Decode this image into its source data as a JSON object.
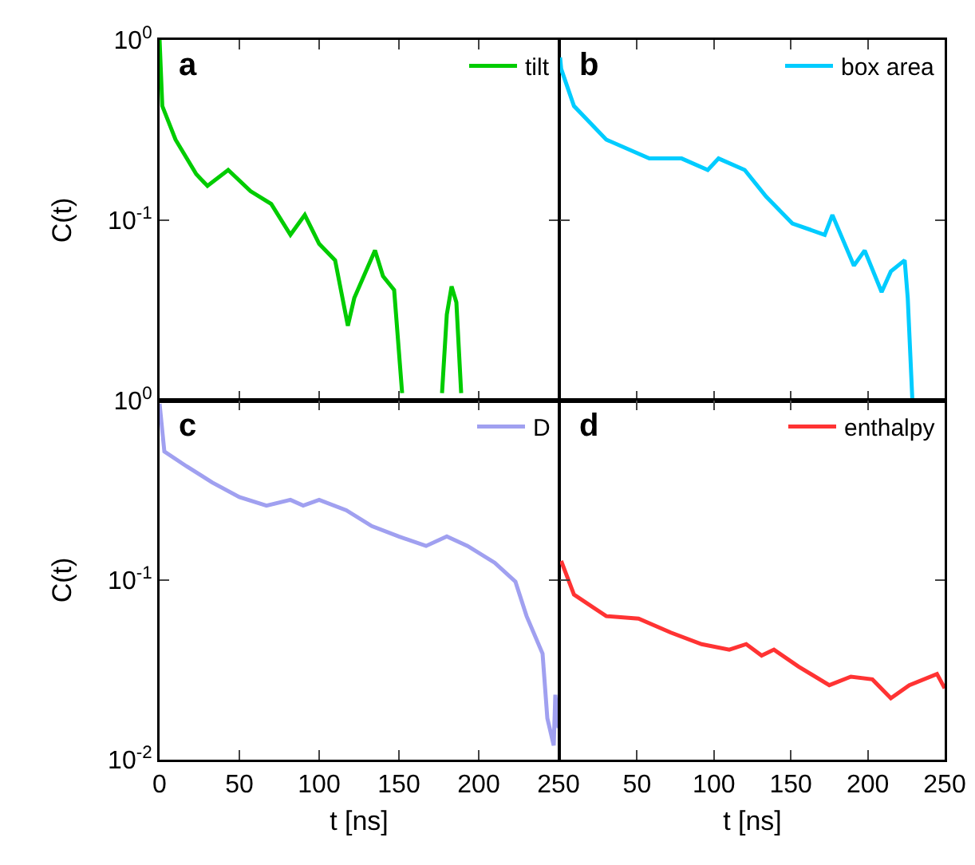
{
  "chart_data": [
    {
      "type": "line",
      "title": "a",
      "ylabel": "C(t)",
      "log": "y",
      "legend": "top right",
      "tick_labels": "y",
      "xlim": [
        0,
        250
      ],
      "xticks": [
        0,
        50,
        100,
        150,
        200,
        250
      ],
      "ylim": [
        0.01,
        1
      ],
      "yticks": [
        {
          "value": 1,
          "label": "10$^{0}$"
        },
        {
          "value": 0.1,
          "label": "10$^{-1}$"
        },
        {
          "value": 0.01,
          "label": null
        }
      ],
      "series": [
        {
          "name": "tilt",
          "color": "#00cc00",
          "x": [
            0,
            1.7,
            10,
            23,
            30,
            43,
            57,
            70,
            82,
            91,
            100,
            110,
            118,
            122,
            135,
            140,
            147,
            152,
            165,
            177,
            180,
            183,
            186,
            189
          ],
          "values": [
            1,
            0.43,
            0.28,
            0.18,
            0.155,
            0.19,
            0.145,
            0.123,
            0.083,
            0.107,
            0.074,
            0.06,
            0.026,
            0.037,
            0.068,
            0.049,
            0.041,
            0.011,
            null,
            0.011,
            0.03,
            0.043,
            0.035,
            0.011
          ]
        }
      ]
    },
    {
      "type": "line",
      "title": "b",
      "log": "y",
      "legend": "top right",
      "tick_labels": false,
      "xlim": [
        0,
        250
      ],
      "xticks": [
        0,
        50,
        100,
        150,
        200,
        250
      ],
      "ylim": [
        0.01,
        1
      ],
      "yticks": [
        {
          "value": 0.1,
          "label": null
        }
      ],
      "series": [
        {
          "name": "box area",
          "color": "#00ccff",
          "x": [
            0,
            0.7,
            9,
            30,
            58,
            79,
            96,
            103,
            120,
            134,
            151,
            172,
            177,
            191,
            198,
            209,
            215,
            224,
            226,
            229
          ],
          "values": [
            0.8,
            0.69,
            0.43,
            0.28,
            0.22,
            0.22,
            0.19,
            0.22,
            0.19,
            0.135,
            0.096,
            0.083,
            0.107,
            0.056,
            0.068,
            0.04,
            0.052,
            0.06,
            0.037,
            0.01
          ]
        }
      ]
    },
    {
      "type": "line",
      "title": "c",
      "xlabel": "t [ns]",
      "ylabel": "C(t)",
      "log": "y",
      "legend": "top right",
      "xlim": [
        0,
        250
      ],
      "xticks": [
        0,
        50,
        100,
        150,
        200,
        250
      ],
      "ylim": [
        0.01,
        1
      ],
      "yticks": [
        {
          "value": 1,
          "label": "10$^{0}$"
        },
        {
          "value": 0.1,
          "label": "10$^{-1}$"
        },
        {
          "value": 0.01,
          "label": "10$^{-2}$"
        }
      ],
      "series": [
        {
          "name": "D",
          "color": "#a0a0f0",
          "x": [
            0,
            3,
            17,
            33,
            50,
            67,
            82,
            90,
            100,
            117,
            133,
            150,
            167,
            180,
            193,
            210,
            223,
            230,
            240,
            243,
            247,
            248,
            250
          ],
          "values": [
            0.96,
            0.52,
            0.43,
            0.35,
            0.29,
            0.26,
            0.28,
            0.26,
            0.28,
            0.245,
            0.2,
            0.175,
            0.155,
            0.175,
            0.155,
            0.125,
            0.098,
            0.063,
            0.039,
            0.017,
            0.012,
            0.023,
            0.015
          ]
        }
      ]
    },
    {
      "type": "line",
      "title": "d",
      "xlabel": "t [ns]",
      "log": "y",
      "legend": "top right",
      "tick_labels": "x",
      "xlim": [
        0,
        250
      ],
      "xticks": [
        50,
        100,
        150,
        200,
        250
      ],
      "ylim": [
        0.01,
        1
      ],
      "yticks": [
        {
          "value": 0.1,
          "label": null
        }
      ],
      "series": [
        {
          "name": "enthalpy",
          "color": "#ff3333",
          "x": [
            0.7,
            9,
            30,
            51,
            72,
            92,
            110,
            121,
            131,
            139,
            155,
            175,
            189,
            203,
            215,
            227,
            245,
            250
          ],
          "values": [
            0.128,
            0.083,
            0.063,
            0.061,
            0.051,
            0.044,
            0.041,
            0.044,
            0.038,
            0.041,
            0.033,
            0.026,
            0.029,
            0.028,
            0.022,
            0.026,
            0.03,
            0.025
          ]
        }
      ]
    }
  ]
}
